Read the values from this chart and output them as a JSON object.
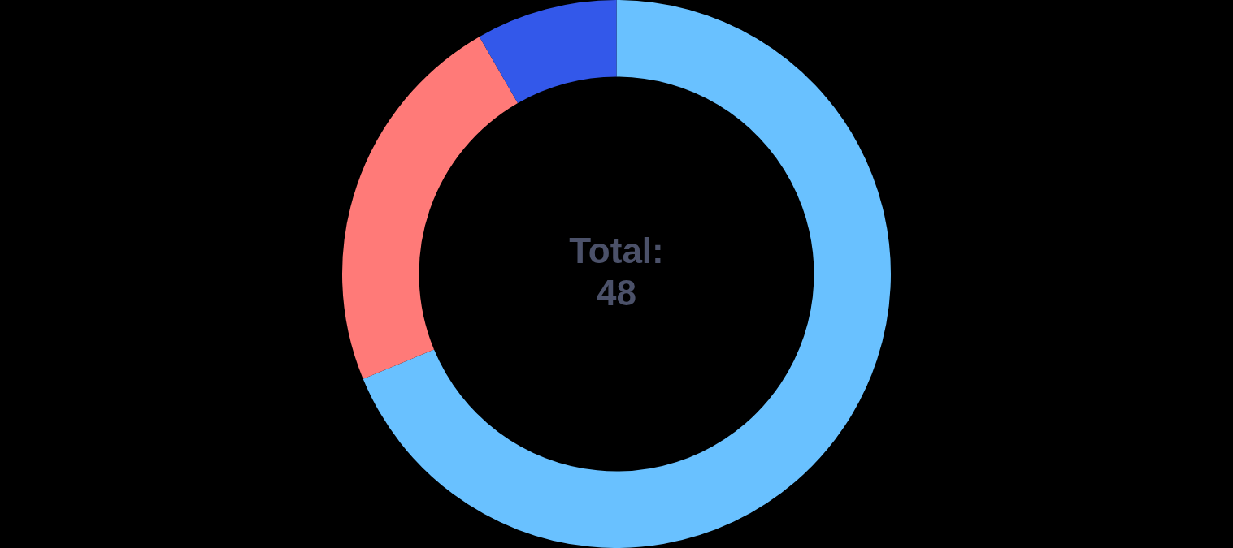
{
  "chart_data": {
    "type": "donut",
    "categories": [
      null,
      null,
      null
    ],
    "values": [
      68.75,
      22.92,
      8.33
    ],
    "colors": [
      "#69c1ff",
      "#ff7a78",
      "#3358ea"
    ],
    "annotations": [
      "Total:",
      "48"
    ],
    "legend": false
  }
}
